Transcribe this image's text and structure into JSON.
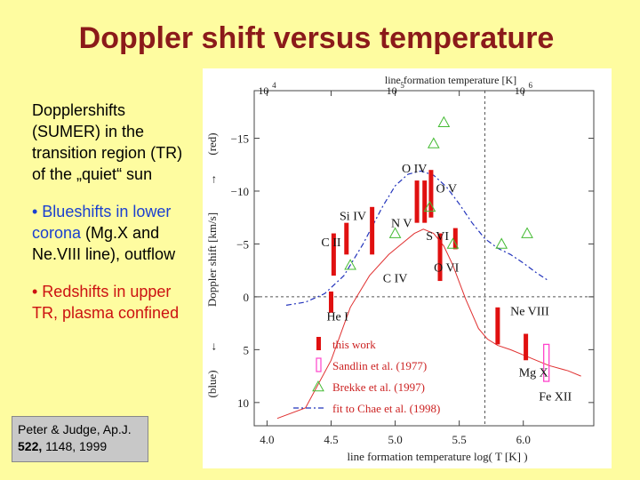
{
  "title": "Doppler shift versus temperature",
  "bullets": {
    "intro": "Dopplershifts (SUMER) in the transition region (TR) of the „quiet“ sun",
    "blue_prefix": "• Blueshifts in lower corona",
    "blue_suffix": " (Mg.X and Ne.VIII line), outflow",
    "red_text": "• Redshifts in upper TR, plasma confined"
  },
  "citation": {
    "line1": "Peter & Judge, Ap.J.",
    "volume": "522,",
    "rest": " 1148, 1999"
  },
  "colors": {
    "title": "#8b1a1a",
    "blue": "#1a3fd0",
    "red": "#cc1111",
    "background": "#fefca0"
  },
  "chart_data": {
    "type": "scatter",
    "xlabel": "line formation temperature  log( T [K] )",
    "top_label": "line formation temperature  [K]",
    "ylabel": "Doppler shift  [km/s]",
    "y_top_label": "(red)",
    "y_bottom_label": "(blue)",
    "arrow_up": "→",
    "arrow_down": "←",
    "xlim": [
      3.9,
      6.55
    ],
    "ylim": [
      -19.5,
      12.2
    ],
    "xticks": [
      4.0,
      4.5,
      5.0,
      5.5,
      6.0
    ],
    "xtick_labels": [
      "4.0",
      "4.5",
      "5.0",
      "5.5",
      "6.0"
    ],
    "yticks": [
      -15,
      -10,
      -5,
      0,
      5,
      10
    ],
    "ytick_labels": [
      "−15",
      "−10",
      "−5",
      "0",
      "5",
      "10"
    ],
    "top_ticks": [
      4,
      5,
      6
    ],
    "top_tick_base": [
      "10",
      "10",
      "10"
    ],
    "top_tick_exp": [
      "4",
      "5",
      "6"
    ],
    "reference_lines": {
      "x": 5.7,
      "y": 0
    },
    "this_work": [
      {
        "x": 4.52,
        "low": -6.0,
        "high": -2.0
      },
      {
        "x": 4.62,
        "low": -7.0,
        "high": -4.0
      },
      {
        "x": 4.5,
        "low": -0.5,
        "high": 1.5
      },
      {
        "x": 4.82,
        "low": -8.5,
        "high": -4.0
      },
      {
        "x": 5.17,
        "low": -11.0,
        "high": -7.0
      },
      {
        "x": 5.23,
        "low": -11.0,
        "high": -7.0
      },
      {
        "x": 5.28,
        "low": -12.0,
        "high": -7.5
      },
      {
        "x": 5.35,
        "low": -6.0,
        "high": -1.5
      },
      {
        "x": 5.47,
        "low": -6.5,
        "high": -4.5
      },
      {
        "x": 5.8,
        "low": 1.0,
        "high": 4.5
      },
      {
        "x": 6.02,
        "low": 3.5,
        "high": 6.0
      }
    ],
    "sandlin": [
      {
        "x": 6.18,
        "low": 4.5,
        "high": 8.0
      }
    ],
    "brekke": [
      {
        "x": 4.65,
        "y": -3.0
      },
      {
        "x": 5.0,
        "y": -6.0
      },
      {
        "x": 5.27,
        "y": -8.5
      },
      {
        "x": 5.3,
        "y": -14.5
      },
      {
        "x": 5.38,
        "y": -16.5
      },
      {
        "x": 5.45,
        "y": -5.0
      },
      {
        "x": 5.83,
        "y": -5.0
      },
      {
        "x": 6.03,
        "y": -6.0
      }
    ],
    "model_curve": {
      "name": "model",
      "x": [
        4.08,
        4.3,
        4.5,
        4.65,
        4.8,
        4.95,
        5.05,
        5.15,
        5.22,
        5.3,
        5.38,
        5.45,
        5.55,
        5.65,
        5.72,
        5.8,
        5.9,
        6.0,
        6.1,
        6.2,
        6.35,
        6.45
      ],
      "y": [
        11.5,
        10.5,
        6.0,
        1.0,
        -2.0,
        -4.0,
        -5.0,
        -6.0,
        -6.4,
        -6.0,
        -4.8,
        -3.0,
        0.2,
        3.0,
        4.0,
        4.6,
        5.0,
        5.5,
        6.0,
        6.5,
        7.0,
        7.5
      ]
    },
    "chae_fit": {
      "name": "fit to Chae et al. (1998)",
      "x": [
        4.15,
        4.3,
        4.45,
        4.6,
        4.75,
        4.9,
        5.0,
        5.1,
        5.2,
        5.3,
        5.4,
        5.5,
        5.6,
        5.7,
        5.8,
        5.9,
        6.0,
        6.1,
        6.2
      ],
      "y": [
        0.8,
        0.5,
        -0.3,
        -2.0,
        -5.0,
        -8.5,
        -10.5,
        -11.6,
        -11.9,
        -11.5,
        -10.4,
        -8.8,
        -7.0,
        -5.5,
        -4.6,
        -4.0,
        -3.2,
        -2.3,
        -1.5
      ]
    },
    "line_labels": [
      {
        "text": "O IV",
        "x": 5.15,
        "y": -12.2
      },
      {
        "text": "O V",
        "x": 5.4,
        "y": -10.3
      },
      {
        "text": "Si IV",
        "x": 4.67,
        "y": -7.7
      },
      {
        "text": "N V",
        "x": 5.05,
        "y": -7.0
      },
      {
        "text": "C II",
        "x": 4.5,
        "y": -5.2
      },
      {
        "text": "S VI",
        "x": 5.33,
        "y": -5.8
      },
      {
        "text": "C IV",
        "x": 5.0,
        "y": -1.8
      },
      {
        "text": "O VI",
        "x": 5.4,
        "y": -2.8
      },
      {
        "text": "He I",
        "x": 4.55,
        "y": 1.8
      },
      {
        "text": "Ne VIII",
        "x": 6.05,
        "y": 1.3
      },
      {
        "text": "Mg X",
        "x": 6.08,
        "y": 7.1
      },
      {
        "text": "Fe XII",
        "x": 6.25,
        "y": 9.4
      }
    ],
    "legend": [
      {
        "kind": "this_work",
        "label": "this work"
      },
      {
        "kind": "sandlin",
        "label": "Sandlin et al. (1977)"
      },
      {
        "kind": "brekke",
        "label": "Brekke et al. (1997)"
      },
      {
        "kind": "chae",
        "label": "fit to Chae et al. (1998)"
      }
    ]
  }
}
